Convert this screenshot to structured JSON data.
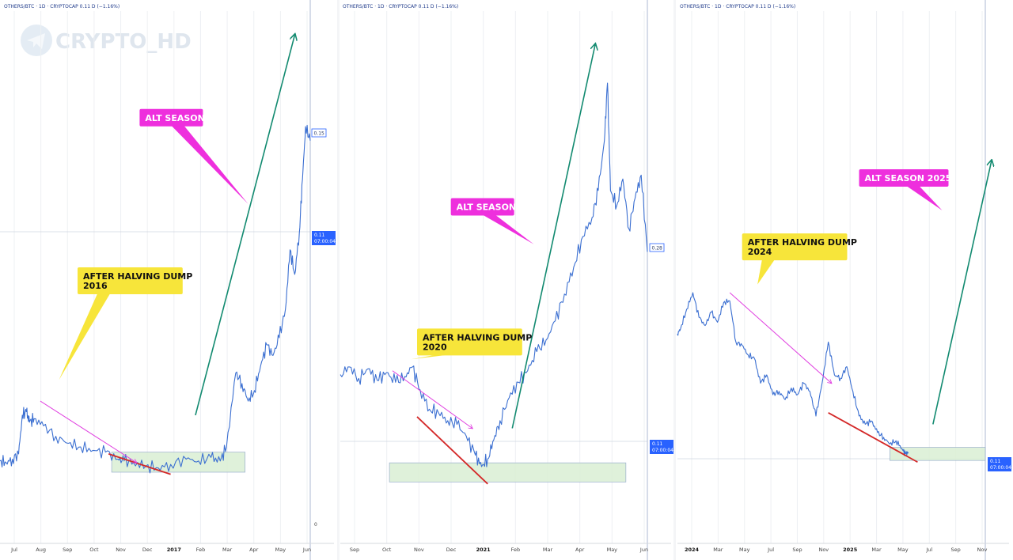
{
  "watermark": {
    "text": "CRYPTO_HD",
    "icon": "telegram-icon"
  },
  "colors": {
    "line": "#3b6fd1",
    "trend_up": "#128a70",
    "trend_red": "#d42828",
    "arrow_magenta": "#e040e0",
    "zone_fill": "#dcf0d6",
    "alt_label_bg": "#ee2fdd",
    "dump_label_bg": "#f7e53a",
    "price_box": "#2962ff"
  },
  "chart_data": [
    {
      "type": "line",
      "header": "OTHERS/BTC · 1D · CRYPTOCAP  0.11  D (−1.16%)",
      "x_ticks": [
        "Jul",
        "Aug",
        "Sep",
        "Oct",
        "Nov",
        "Dec",
        "2017",
        "Feb",
        "Mar",
        "Apr",
        "May",
        "Jun"
      ],
      "bold_ticks": [
        "2017"
      ],
      "price_labels": [
        {
          "value": "0.15",
          "style": "outline"
        },
        {
          "value": "0.11",
          "sub": "07:00:04",
          "style": "filled"
        },
        {
          "value": "0",
          "style": "plain"
        }
      ],
      "series": [
        {
          "x": [
            0,
            0.02,
            0.04,
            0.06,
            0.072,
            0.085,
            0.095,
            0.11,
            0.14,
            0.18,
            0.22,
            0.26,
            0.3,
            0.34,
            0.38,
            0.4,
            0.43,
            0.47,
            0.51,
            0.55,
            0.6,
            0.64,
            0.68,
            0.71,
            0.73,
            0.76,
            0.78,
            0.8,
            0.82,
            0.84,
            0.86,
            0.88,
            0.9,
            0.92,
            0.935,
            0.95,
            0.965,
            0.975,
            0.985,
            1.0
          ],
          "y": [
            0.05,
            0.045,
            0.055,
            0.07,
            0.18,
            0.19,
            0.16,
            0.17,
            0.15,
            0.12,
            0.1,
            0.09,
            0.08,
            0.075,
            0.055,
            0.05,
            0.045,
            0.035,
            0.03,
            0.04,
            0.055,
            0.05,
            0.06,
            0.05,
            0.09,
            0.3,
            0.27,
            0.22,
            0.25,
            0.32,
            0.38,
            0.35,
            0.4,
            0.48,
            0.65,
            0.58,
            0.7,
            0.85,
            1.0,
            0.96
          ]
        }
      ],
      "zone": {
        "x": [
          0.36,
          0.79
        ],
        "y": [
          0.018,
          0.075
        ]
      },
      "trend_up": {
        "from": [
          0.63,
          0.18
        ],
        "to": [
          0.95,
          1.26
        ],
        "arrow": true
      },
      "trend_red": {
        "from": [
          0.35,
          0.07
        ],
        "to": [
          0.55,
          0.012
        ]
      },
      "dump_arrow": {
        "from": [
          0.13,
          0.22
        ],
        "to": [
          0.44,
          0.045
        ]
      },
      "annotations": [
        {
          "text": "AFTER HALVING DUMP",
          "text2": "2016",
          "kind": "dump",
          "pos": [
            0.25,
            0.6
          ],
          "tail": [
            0.19,
            0.28
          ]
        },
        {
          "text": "ALT SEASON",
          "kind": "alt",
          "pos": [
            0.45,
            1.05
          ],
          "tail": [
            0.8,
            0.78
          ]
        }
      ]
    },
    {
      "type": "line",
      "header": "OTHERS/BTC · 1D · CRYPTOCAP  0.11  D (−1.16%)",
      "x_ticks": [
        "Sep",
        "Oct",
        "Nov",
        "Dec",
        "2021",
        "Feb",
        "Mar",
        "Apr",
        "May",
        "Jun"
      ],
      "bold_ticks": [
        "2021"
      ],
      "price_labels": [
        {
          "value": "0.28",
          "style": "outline"
        },
        {
          "value": "0.11",
          "sub": "07:00:04",
          "style": "filled"
        }
      ],
      "series": [
        {
          "x": [
            0,
            0.03,
            0.06,
            0.09,
            0.12,
            0.15,
            0.18,
            0.21,
            0.235,
            0.26,
            0.29,
            0.32,
            0.35,
            0.38,
            0.41,
            0.44,
            0.46,
            0.48,
            0.5,
            0.52,
            0.55,
            0.58,
            0.61,
            0.64,
            0.67,
            0.7,
            0.73,
            0.76,
            0.79,
            0.82,
            0.84,
            0.86,
            0.87,
            0.88,
            0.9,
            0.92,
            0.94,
            0.96,
            0.98,
            1.0
          ],
          "y": [
            0.24,
            0.26,
            0.23,
            0.255,
            0.225,
            0.245,
            0.22,
            0.235,
            0.26,
            0.2,
            0.15,
            0.14,
            0.12,
            0.11,
            0.08,
            0.03,
            0.0,
            0.02,
            0.07,
            0.12,
            0.18,
            0.22,
            0.25,
            0.3,
            0.33,
            0.38,
            0.45,
            0.52,
            0.6,
            0.65,
            0.72,
            0.85,
            1.0,
            0.72,
            0.68,
            0.75,
            0.62,
            0.7,
            0.76,
            0.56
          ]
        }
      ],
      "zone": {
        "x": [
          0.16,
          0.93
        ],
        "y": [
          -0.04,
          0.01
        ]
      },
      "trend_up": {
        "from": [
          0.56,
          0.1
        ],
        "to": [
          0.83,
          1.1
        ],
        "arrow": true
      },
      "trend_red": {
        "from": [
          0.25,
          0.13
        ],
        "to": [
          0.48,
          -0.045
        ]
      },
      "dump_arrow": {
        "from": [
          0.17,
          0.25
        ],
        "to": [
          0.43,
          0.1
        ]
      },
      "annotations": [
        {
          "text": "AFTER HALVING DUMP",
          "text2": "2020",
          "kind": "dump",
          "pos": [
            0.25,
            0.36
          ],
          "tail": [
            0.23,
            0.28
          ]
        },
        {
          "text": "ALT SEASON",
          "kind": "alt",
          "pos": [
            0.36,
            0.7
          ],
          "tail": [
            0.63,
            0.58
          ]
        }
      ]
    },
    {
      "type": "line",
      "header": "OTHERS/BTC · 1D · CRYPTOCAP  0.11  D (−1.16%)",
      "x_ticks": [
        "2024",
        "Mar",
        "May",
        "Jul",
        "Sep",
        "Nov",
        "2025",
        "Mar",
        "May",
        "Jul",
        "Sep",
        "Nov"
      ],
      "bold_ticks": [
        "2024",
        "2025"
      ],
      "price_labels": [
        {
          "value": "0.11",
          "sub": "07:00:04",
          "style": "filled"
        }
      ],
      "series": [
        {
          "x": [
            0,
            0.01,
            0.03,
            0.05,
            0.07,
            0.09,
            0.11,
            0.13,
            0.15,
            0.17,
            0.19,
            0.21,
            0.23,
            0.25,
            0.27,
            0.29,
            0.31,
            0.33,
            0.35,
            0.37,
            0.39,
            0.41,
            0.43,
            0.45,
            0.47,
            0.49,
            0.51,
            0.53,
            0.55,
            0.57,
            0.59,
            0.61,
            0.63,
            0.65,
            0.67,
            0.69,
            0.71,
            0.73,
            0.74,
            0.75
          ],
          "y": [
            0.75,
            0.78,
            0.9,
            1.0,
            0.85,
            0.8,
            0.88,
            0.82,
            0.94,
            0.95,
            0.7,
            0.68,
            0.62,
            0.6,
            0.45,
            0.5,
            0.38,
            0.4,
            0.35,
            0.42,
            0.38,
            0.45,
            0.4,
            0.25,
            0.45,
            0.7,
            0.5,
            0.48,
            0.55,
            0.4,
            0.25,
            0.2,
            0.22,
            0.15,
            0.12,
            0.08,
            0.1,
            0.05,
            0.02,
            0.03
          ]
        }
      ],
      "zone": {
        "x": [
          0.69,
          1.0
        ],
        "y": [
          -0.02,
          0.06
        ]
      },
      "trend_up": {
        "from": [
          0.83,
          0.2
        ],
        "to": [
          1.02,
          1.8
        ],
        "arrow": true
      },
      "trend_red": {
        "from": [
          0.49,
          0.27
        ],
        "to": [
          0.78,
          -0.03
        ]
      },
      "dump_arrow": {
        "from": [
          0.17,
          1.0
        ],
        "to": [
          0.5,
          0.45
        ]
      },
      "annotations": [
        {
          "text": "AFTER HALVING DUMP",
          "text2": "2024",
          "kind": "dump",
          "pos": [
            0.21,
            1.36
          ],
          "tail": [
            0.26,
            1.05
          ]
        },
        {
          "text": "ALT SEASON 2025",
          "kind": "alt",
          "pos": [
            0.59,
            1.75
          ],
          "tail": [
            0.86,
            1.5
          ]
        }
      ]
    }
  ]
}
